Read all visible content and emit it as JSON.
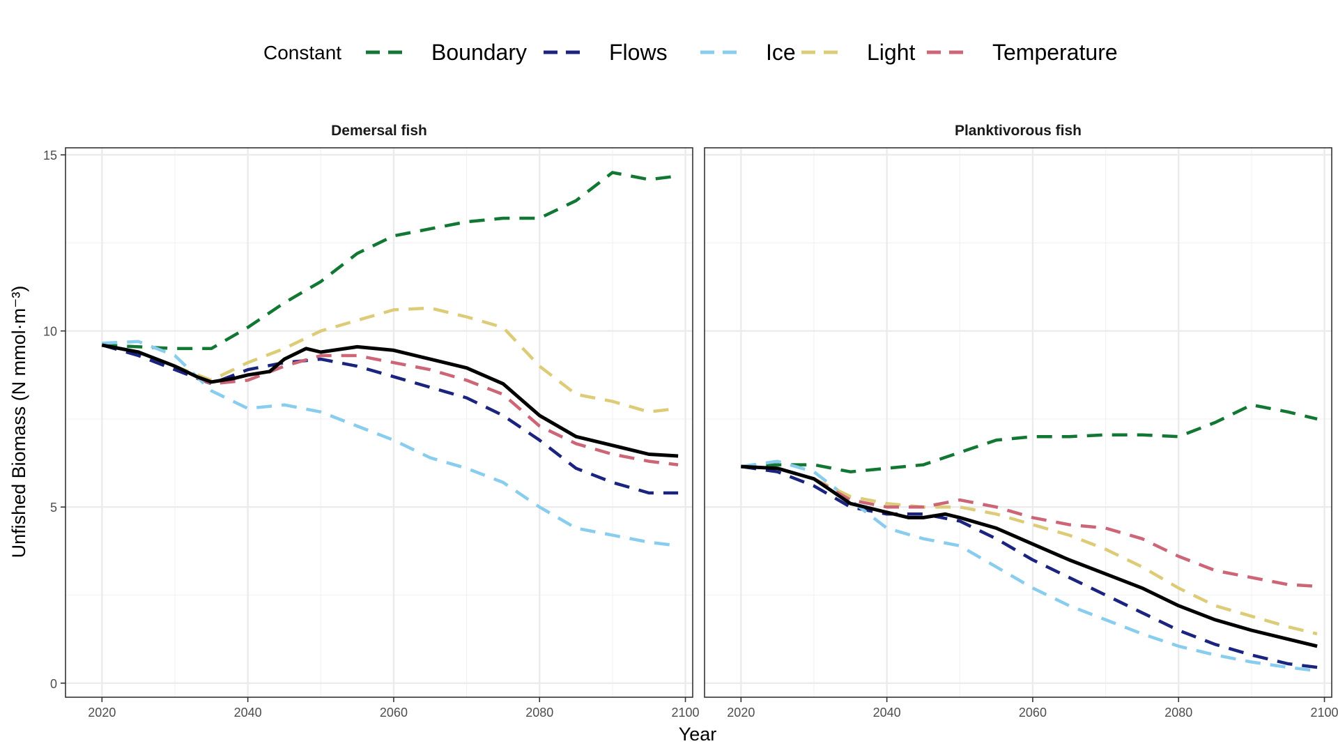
{
  "chart_data": {
    "type": "line",
    "xlabel": "Year",
    "ylabel": "Unfished Biomass (N mmol·m⁻³)",
    "xlim": [
      2015,
      2101
    ],
    "ylim": [
      -0.4,
      15.2
    ],
    "x_ticks": [
      2020,
      2040,
      2060,
      2080,
      2100
    ],
    "y_ticks": [
      0,
      5,
      10,
      15
    ],
    "grid": true,
    "legend": {
      "title": "Constant",
      "position": "top",
      "entries": [
        {
          "label": "Boundary",
          "color": "#117733",
          "dash": "dashed"
        },
        {
          "label": "Flows",
          "color": "#1a237e",
          "dash": "dashed"
        },
        {
          "label": "Ice",
          "color": "#88ccee",
          "dash": "dashed"
        },
        {
          "label": "Light",
          "color": "#ddcc77",
          "dash": "dashed"
        },
        {
          "label": "Temperature",
          "color": "#cc6677",
          "dash": "dashed"
        }
      ]
    },
    "panels": [
      {
        "title": "Demersal fish",
        "series": [
          {
            "name": "Boundary",
            "color": "#117733",
            "dash": "dashed",
            "x": [
              2020,
              2025,
              2030,
              2035,
              2040,
              2045,
              2050,
              2055,
              2060,
              2065,
              2070,
              2075,
              2080,
              2085,
              2090,
              2095,
              2099
            ],
            "y": [
              9.6,
              9.55,
              9.5,
              9.5,
              10.1,
              10.8,
              11.4,
              12.2,
              12.7,
              12.9,
              13.1,
              13.2,
              13.2,
              13.7,
              14.5,
              14.3,
              14.4
            ]
          },
          {
            "name": "Flows",
            "color": "#1a237e",
            "dash": "dashed",
            "x": [
              2020,
              2025,
              2030,
              2035,
              2040,
              2045,
              2050,
              2055,
              2060,
              2065,
              2070,
              2075,
              2080,
              2085,
              2090,
              2095,
              2099
            ],
            "y": [
              9.6,
              9.3,
              8.9,
              8.5,
              8.9,
              9.1,
              9.2,
              9.0,
              8.7,
              8.4,
              8.1,
              7.6,
              6.9,
              6.1,
              5.7,
              5.4,
              5.4
            ]
          },
          {
            "name": "Ice",
            "color": "#88ccee",
            "dash": "dashed",
            "x": [
              2020,
              2025,
              2030,
              2035,
              2040,
              2045,
              2050,
              2055,
              2060,
              2065,
              2070,
              2075,
              2080,
              2085,
              2090,
              2095,
              2099
            ],
            "y": [
              9.65,
              9.7,
              9.3,
              8.3,
              7.8,
              7.9,
              7.7,
              7.3,
              6.9,
              6.4,
              6.1,
              5.7,
              5.0,
              4.4,
              4.2,
              4.0,
              3.9
            ]
          },
          {
            "name": "Light",
            "color": "#ddcc77",
            "dash": "dashed",
            "x": [
              2020,
              2025,
              2030,
              2035,
              2040,
              2045,
              2050,
              2055,
              2060,
              2065,
              2070,
              2075,
              2080,
              2085,
              2090,
              2095,
              2099
            ],
            "y": [
              9.6,
              9.4,
              9.0,
              8.6,
              9.1,
              9.5,
              10.0,
              10.3,
              10.6,
              10.65,
              10.4,
              10.1,
              9.0,
              8.2,
              8.0,
              7.7,
              7.8
            ]
          },
          {
            "name": "Temperature",
            "color": "#cc6677",
            "dash": "dashed",
            "x": [
              2020,
              2025,
              2030,
              2035,
              2040,
              2045,
              2050,
              2055,
              2060,
              2065,
              2070,
              2075,
              2080,
              2085,
              2090,
              2095,
              2099
            ],
            "y": [
              9.6,
              9.4,
              9.0,
              8.5,
              8.6,
              9.0,
              9.3,
              9.3,
              9.1,
              8.9,
              8.6,
              8.2,
              7.3,
              6.8,
              6.5,
              6.3,
              6.2
            ]
          },
          {
            "name": "",
            "color": "#000000",
            "dash": "solid",
            "x": [
              2020,
              2025,
              2030,
              2033,
              2035,
              2038,
              2040,
              2043,
              2045,
              2048,
              2050,
              2055,
              2060,
              2065,
              2070,
              2075,
              2080,
              2085,
              2090,
              2095,
              2099
            ],
            "y": [
              9.6,
              9.4,
              9.0,
              8.7,
              8.55,
              8.65,
              8.75,
              8.85,
              9.2,
              9.5,
              9.4,
              9.55,
              9.45,
              9.2,
              8.95,
              8.5,
              7.6,
              7.0,
              6.75,
              6.5,
              6.45
            ]
          }
        ]
      },
      {
        "title": "Planktivorous fish",
        "series": [
          {
            "name": "Boundary",
            "color": "#117733",
            "dash": "dashed",
            "x": [
              2020,
              2025,
              2030,
              2035,
              2040,
              2045,
              2050,
              2055,
              2060,
              2065,
              2070,
              2075,
              2080,
              2085,
              2090,
              2095,
              2099
            ],
            "y": [
              6.15,
              6.2,
              6.2,
              6.0,
              6.1,
              6.2,
              6.55,
              6.9,
              7.0,
              7.0,
              7.05,
              7.05,
              7.0,
              7.4,
              7.9,
              7.7,
              7.5
            ]
          },
          {
            "name": "Flows",
            "color": "#1a237e",
            "dash": "dashed",
            "x": [
              2020,
              2025,
              2030,
              2035,
              2040,
              2045,
              2050,
              2055,
              2060,
              2065,
              2070,
              2075,
              2080,
              2085,
              2090,
              2095,
              2099
            ],
            "y": [
              6.15,
              6.0,
              5.6,
              5.0,
              4.8,
              4.8,
              4.6,
              4.1,
              3.5,
              3.0,
              2.5,
              2.0,
              1.5,
              1.1,
              0.8,
              0.55,
              0.45
            ]
          },
          {
            "name": "Ice",
            "color": "#88ccee",
            "dash": "dashed",
            "x": [
              2020,
              2025,
              2030,
              2035,
              2040,
              2045,
              2050,
              2055,
              2060,
              2065,
              2070,
              2075,
              2080,
              2085,
              2090,
              2095,
              2099
            ],
            "y": [
              6.15,
              6.3,
              6.0,
              5.2,
              4.4,
              4.1,
              3.9,
              3.3,
              2.7,
              2.2,
              1.8,
              1.4,
              1.05,
              0.8,
              0.6,
              0.45,
              0.35
            ]
          },
          {
            "name": "Light",
            "color": "#ddcc77",
            "dash": "dashed",
            "x": [
              2020,
              2025,
              2030,
              2035,
              2040,
              2045,
              2050,
              2055,
              2060,
              2065,
              2070,
              2075,
              2080,
              2085,
              2090,
              2095,
              2099
            ],
            "y": [
              6.15,
              6.1,
              5.8,
              5.3,
              5.1,
              5.0,
              5.0,
              4.8,
              4.5,
              4.2,
              3.8,
              3.3,
              2.7,
              2.2,
              1.9,
              1.6,
              1.4
            ]
          },
          {
            "name": "Temperature",
            "color": "#cc6677",
            "dash": "dashed",
            "x": [
              2020,
              2025,
              2030,
              2035,
              2040,
              2045,
              2050,
              2055,
              2060,
              2065,
              2070,
              2075,
              2080,
              2085,
              2090,
              2095,
              2099
            ],
            "y": [
              6.15,
              6.1,
              5.8,
              5.2,
              5.0,
              5.0,
              5.2,
              5.0,
              4.7,
              4.5,
              4.4,
              4.1,
              3.6,
              3.2,
              3.0,
              2.8,
              2.75
            ]
          },
          {
            "name": "",
            "color": "#000000",
            "dash": "solid",
            "x": [
              2020,
              2025,
              2030,
              2035,
              2040,
              2043,
              2045,
              2048,
              2050,
              2055,
              2060,
              2065,
              2070,
              2075,
              2080,
              2085,
              2090,
              2095,
              2099
            ],
            "y": [
              6.15,
              6.1,
              5.8,
              5.1,
              4.85,
              4.7,
              4.7,
              4.8,
              4.7,
              4.4,
              3.95,
              3.5,
              3.1,
              2.7,
              2.2,
              1.8,
              1.5,
              1.25,
              1.05
            ]
          }
        ]
      }
    ]
  }
}
